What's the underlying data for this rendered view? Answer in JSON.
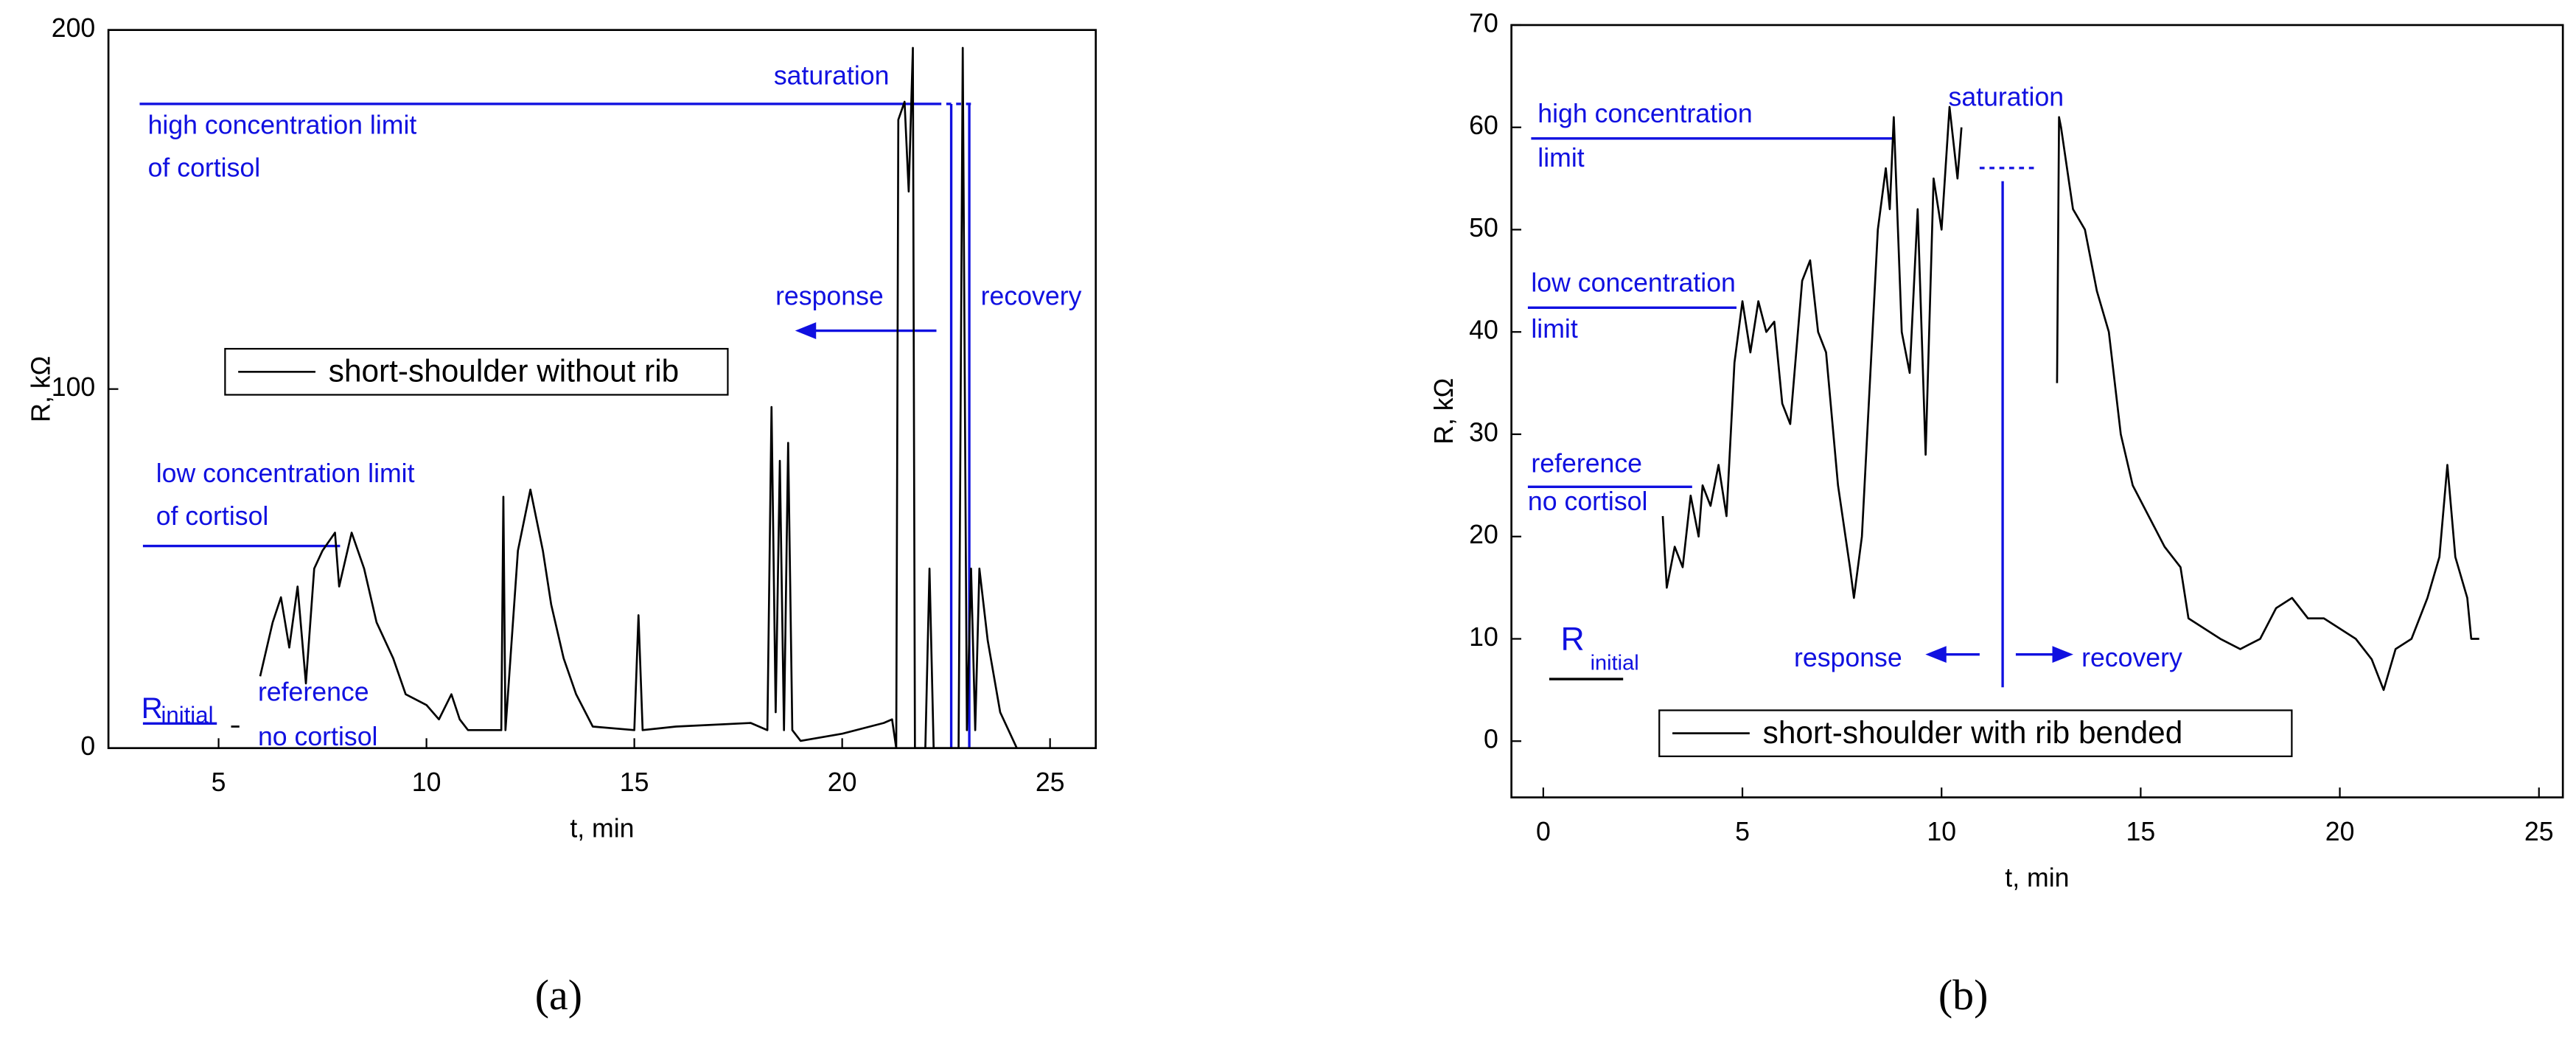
{
  "chart_data": [
    {
      "type": "line",
      "caption": "(a)",
      "x_label": "t, min",
      "y_label": "R, kΩ",
      "xlim": [
        2.35,
        26.1
      ],
      "ylim": [
        0,
        200
      ],
      "xticks": [
        5,
        10,
        15,
        20,
        25
      ],
      "yticks": [
        0,
        100,
        200
      ],
      "annotations": [
        "saturation",
        "high concentration limit",
        "of cortisol",
        "response",
        "recovery",
        "low concentration limit",
        "of cortisol",
        "R",
        "initial",
        "reference",
        "no cortisol"
      ],
      "x": [
        5.3,
        5.5,
        5.8,
        6.0,
        6.3,
        6.5,
        6.7,
        6.9,
        7.1,
        7.3,
        7.5,
        7.8,
        7.9,
        8.2,
        8.5,
        8.8,
        9.2,
        9.5,
        10.0,
        10.3,
        10.6,
        10.8,
        11.0,
        11.8,
        11.85,
        11.9,
        12.2,
        12.5,
        12.8,
        13.0,
        13.3,
        13.6,
        14.0,
        15.0,
        15.1,
        15.2,
        16.0,
        17.8,
        18.2,
        18.3,
        18.4,
        18.5,
        18.6,
        18.7,
        18.8,
        19.0,
        20.0,
        21.0,
        21.2,
        21.3,
        21.35,
        21.5,
        21.6,
        21.7,
        21.75,
        22.0,
        22.1,
        22.2,
        22.8,
        22.9,
        23.0,
        23.1,
        23.2,
        23.3,
        23.5,
        23.8,
        24.0,
        24.2
      ],
      "series": [
        {
          "name": "short-shoulder without rib",
          "color": "#000000",
          "values": [
            6,
            6,
            null,
            20,
            35,
            42,
            28,
            45,
            18,
            50,
            55,
            60,
            45,
            60,
            50,
            35,
            25,
            15,
            12,
            8,
            15,
            8,
            5,
            5,
            70,
            5,
            55,
            72,
            55,
            40,
            25,
            15,
            6,
            5,
            37,
            5,
            6,
            7,
            5,
            95,
            10,
            80,
            5,
            85,
            5,
            2,
            4,
            7,
            8,
            0,
            175,
            180,
            155,
            195,
            0,
            0,
            50,
            0,
            0,
            195,
            5,
            50,
            5,
            50,
            30,
            10,
            5,
            0
          ]
        }
      ]
    },
    {
      "type": "line",
      "caption": "(b)",
      "x_label": "t, min",
      "y_label": "R, kΩ",
      "xlim": [
        -0.8,
        25.6
      ],
      "ylim": [
        -5.5,
        70
      ],
      "xticks": [
        0,
        5,
        10,
        15,
        20,
        25
      ],
      "yticks": [
        0,
        10,
        20,
        30,
        40,
        50,
        60,
        70
      ],
      "annotations": [
        "saturation",
        "high concentration",
        "limit",
        "low concentration",
        "limit",
        "reference",
        "no cortisol",
        "R",
        "initial",
        "response",
        "recovery"
      ],
      "x": [
        3.0,
        3.1,
        3.3,
        3.5,
        3.7,
        3.9,
        4.0,
        4.2,
        4.4,
        4.6,
        4.8,
        5.0,
        5.2,
        5.4,
        5.6,
        5.8,
        6.0,
        6.2,
        6.5,
        6.7,
        6.9,
        7.1,
        7.4,
        7.7,
        7.8,
        8.0,
        8.2,
        8.4,
        8.6,
        8.7,
        8.8,
        9.0,
        9.2,
        9.4,
        9.6,
        9.8,
        10.0,
        10.2,
        10.4,
        10.5,
        11.0,
        12.9,
        12.95,
        13.0,
        13.3,
        13.6,
        13.9,
        14.2,
        14.5,
        14.8,
        15.2,
        15.6,
        16.0,
        16.2,
        16.6,
        17.0,
        17.5,
        18.0,
        18.4,
        18.8,
        19.2,
        19.6,
        20.0,
        20.4,
        20.8,
        21.1,
        21.4,
        21.8,
        22.2,
        22.5,
        22.7,
        22.9,
        23.2,
        23.3,
        23.5
      ],
      "series": [
        {
          "name": "short-shoulder with rib bended",
          "color": "#000000",
          "values": [
            22,
            15,
            19,
            17,
            24,
            20,
            25,
            23,
            27,
            22,
            37,
            43,
            38,
            43,
            40,
            41,
            33,
            31,
            45,
            47,
            40,
            38,
            25,
            17,
            14,
            20,
            35,
            50,
            56,
            52,
            61,
            40,
            36,
            52,
            28,
            55,
            50,
            62,
            55,
            60,
            null,
            35,
            61,
            60,
            52,
            50,
            44,
            40,
            30,
            25,
            22,
            19,
            17,
            12,
            11,
            10,
            9,
            10,
            13,
            14,
            12,
            12,
            11,
            10,
            8,
            5,
            9,
            10,
            14,
            18,
            27,
            18,
            14,
            10,
            10
          ]
        }
      ]
    }
  ]
}
